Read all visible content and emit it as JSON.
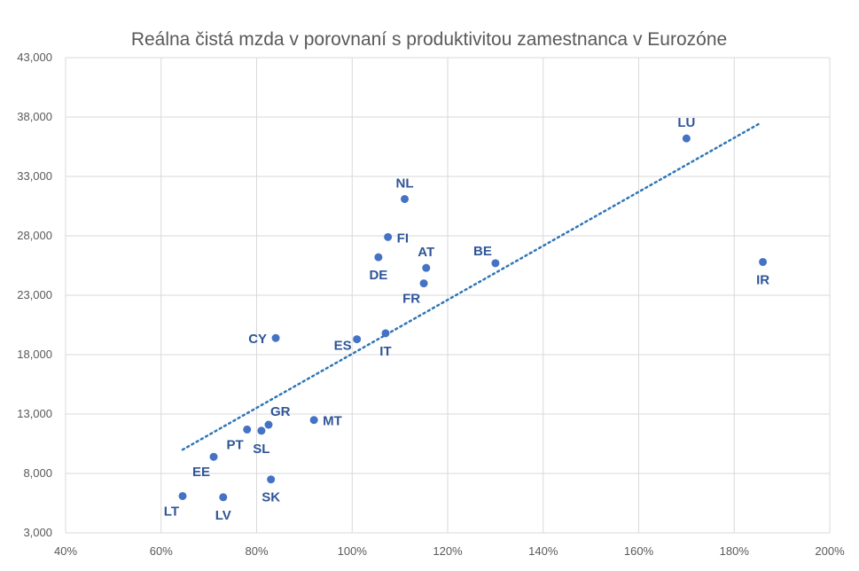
{
  "chart_data": {
    "type": "scatter",
    "title": "Reálna čistá mzda  v porovnaní s produktivitou zamestnanca v Eurozóne",
    "xlabel": "",
    "ylabel": "",
    "xlim": [
      0.4,
      2.0
    ],
    "ylim": [
      3000,
      43000
    ],
    "x_ticks": [
      0.4,
      0.6,
      0.8,
      1.0,
      1.2,
      1.4,
      1.6,
      1.8,
      2.0
    ],
    "x_tick_labels": [
      "40%",
      "60%",
      "80%",
      "100%",
      "120%",
      "140%",
      "160%",
      "180%",
      "200%"
    ],
    "y_ticks": [
      3000,
      8000,
      13000,
      18000,
      23000,
      28000,
      33000,
      38000,
      43000
    ],
    "y_tick_labels": [
      "3,000",
      "8,000",
      "13,000",
      "18,000",
      "23,000",
      "28,000",
      "33,000",
      "38,000",
      "43,000"
    ],
    "grid": true,
    "marker_color": "#4472C4",
    "label_color": "#2F5597",
    "trendline": {
      "style": "dotted",
      "color": "#2E75B6",
      "x": [
        0.645,
        1.855
      ],
      "y": [
        10000,
        37500
      ]
    },
    "points": [
      {
        "label": "LU",
        "x": 1.7,
        "y": 36200,
        "pos": "above"
      },
      {
        "label": "NL",
        "x": 1.11,
        "y": 31100,
        "pos": "above"
      },
      {
        "label": "FI",
        "x": 1.075,
        "y": 27900,
        "pos": "right"
      },
      {
        "label": "DE",
        "x": 1.055,
        "y": 26200,
        "pos": "below"
      },
      {
        "label": "AT",
        "x": 1.155,
        "y": 25300,
        "pos": "above"
      },
      {
        "label": "BE",
        "x": 1.3,
        "y": 25700,
        "pos": "above-left"
      },
      {
        "label": "IR",
        "x": 1.86,
        "y": 25800,
        "pos": "below"
      },
      {
        "label": "FR",
        "x": 1.15,
        "y": 24000,
        "pos": "below-left"
      },
      {
        "label": "CY",
        "x": 0.84,
        "y": 19400,
        "pos": "left"
      },
      {
        "label": "ES",
        "x": 1.01,
        "y": 19300,
        "pos": "left-below"
      },
      {
        "label": "IT",
        "x": 1.07,
        "y": 19800,
        "pos": "below"
      },
      {
        "label": "MT",
        "x": 0.92,
        "y": 12500,
        "pos": "right"
      },
      {
        "label": "GR",
        "x": 0.825,
        "y": 12100,
        "pos": "above-right"
      },
      {
        "label": "PT",
        "x": 0.78,
        "y": 11700,
        "pos": "below-left"
      },
      {
        "label": "SL",
        "x": 0.81,
        "y": 11600,
        "pos": "below"
      },
      {
        "label": "EE",
        "x": 0.71,
        "y": 9400,
        "pos": "below-left"
      },
      {
        "label": "SK",
        "x": 0.83,
        "y": 7500,
        "pos": "below"
      },
      {
        "label": "LT",
        "x": 0.645,
        "y": 6100,
        "pos": "below-left"
      },
      {
        "label": "LV",
        "x": 0.73,
        "y": 6000,
        "pos": "below"
      }
    ]
  }
}
